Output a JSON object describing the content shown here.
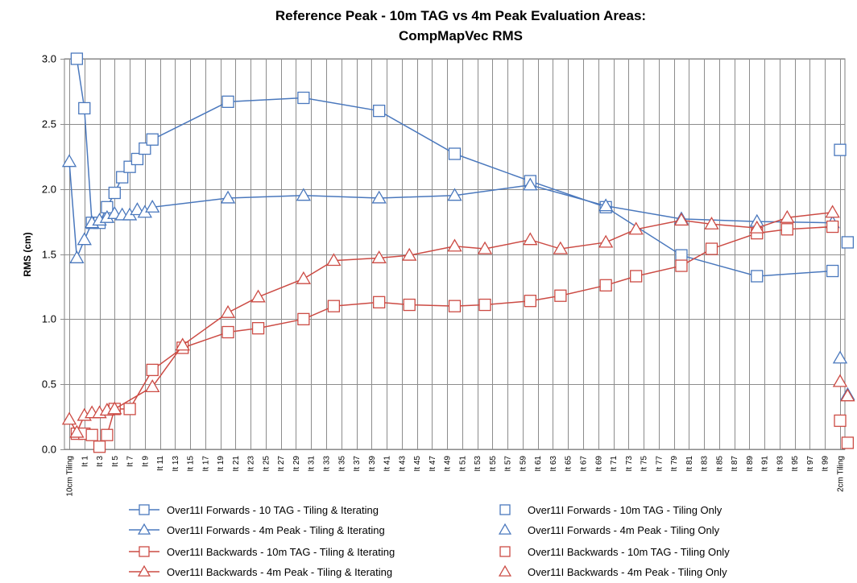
{
  "chart_data": {
    "type": "line",
    "title_line1": "Reference Peak - 10m TAG vs 4m Peak Evaluation Areas:",
    "title_line2": "CompMapVec RMS",
    "title": "Reference Peak - 10m TAG vs 4m Peak Evaluation Areas: CompMapVec RMS",
    "ylabel": "RMS (cm)",
    "xlabel": "",
    "ylim": [
      0,
      3
    ],
    "yticks": [
      "0.0",
      "0.5",
      "1.0",
      "1.5",
      "2.0",
      "2.5",
      "3.0"
    ],
    "grid": true,
    "legend_position": "bottom",
    "categories": [
      "10cm Tiling",
      "It 1",
      "It 3",
      "It 5",
      "It 7",
      "It 9",
      "It 11",
      "It 13",
      "It 15",
      "It 17",
      "It 19",
      "It 21",
      "It 23",
      "It 25",
      "It 27",
      "It 29",
      "It 31",
      "It 33",
      "It 35",
      "It 37",
      "It 39",
      "It 41",
      "It 43",
      "It 45",
      "It 47",
      "It 49",
      "It 51",
      "It 53",
      "It 55",
      "It 57",
      "It 59",
      "It 61",
      "It 63",
      "It 65",
      "It 67",
      "It 69",
      "It 71",
      "It 73",
      "It 75",
      "It 77",
      "It 79",
      "It 81",
      "It 83",
      "It 85",
      "It 87",
      "It 89",
      "It 91",
      "It 93",
      "It 95",
      "It 97",
      "It 99",
      "2cm Tiling"
    ],
    "series": [
      {
        "name": "Over11I Forwards - 10 TAG - Tiling & Iterating",
        "color": "#4a78bd",
        "marker": "square",
        "line": true,
        "x": [
          0.5,
          1,
          1.5,
          2,
          2.5,
          3,
          3.5,
          4,
          4.5,
          5,
          5.5,
          10.5,
          15.5,
          20.5,
          25.5,
          30.5,
          35.5,
          40.5,
          45.5,
          50.5
        ],
        "y": [
          3.0,
          2.62,
          1.74,
          1.74,
          1.86,
          1.97,
          2.09,
          2.17,
          2.23,
          2.31,
          2.38,
          2.67,
          2.7,
          2.6,
          2.27,
          2.06,
          1.86,
          1.49,
          1.33,
          1.37
        ]
      },
      {
        "name": "Over11I Forwards - 10m TAG - Tiling Only",
        "color": "#4a78bd",
        "marker": "square",
        "line": false,
        "x": [
          51,
          51.5
        ],
        "y": [
          2.3,
          1.59
        ]
      },
      {
        "name": "Over11I Forwards - 4m Peak - Tiling & Iterating",
        "color": "#4a78bd",
        "marker": "triangle",
        "line": true,
        "x": [
          0,
          0.5,
          1,
          1.5,
          2,
          2.5,
          3,
          3.5,
          4,
          4.5,
          5,
          5.5,
          10.5,
          15.5,
          20.5,
          25.5,
          30.5,
          35.5,
          40.5,
          45.5,
          50.5
        ],
        "y": [
          2.21,
          1.47,
          1.61,
          1.74,
          1.76,
          1.78,
          1.81,
          1.8,
          1.8,
          1.84,
          1.82,
          1.86,
          1.93,
          1.95,
          1.93,
          1.95,
          2.03,
          1.87,
          1.77,
          1.75,
          1.74
        ]
      },
      {
        "name": "Over11I Forwards - 4m Peak - Tiling Only",
        "color": "#4a78bd",
        "marker": "triangle",
        "line": false,
        "x": [
          51,
          51.5
        ],
        "y": [
          0.7,
          0.42
        ]
      },
      {
        "name": "Over11I Backwards - 10m TAG - Tiling & Iterating",
        "color": "#cc4b44",
        "marker": "square",
        "line": true,
        "x": [
          0.5,
          1,
          1.5,
          2,
          2.5,
          3,
          4,
          5.5,
          7.5,
          10.5,
          12.5,
          15.5,
          17.5,
          20.5,
          22.5,
          25.5,
          27.5,
          30.5,
          32.5,
          35.5,
          37.5,
          40.5,
          42.5,
          45.5,
          47.5,
          50.5
        ],
        "y": [
          0.12,
          0.12,
          0.11,
          0.02,
          0.11,
          0.31,
          0.31,
          0.61,
          0.78,
          0.9,
          0.93,
          1.0,
          1.1,
          1.13,
          1.11,
          1.1,
          1.11,
          1.14,
          1.18,
          1.26,
          1.33,
          1.41,
          1.54,
          1.66,
          1.69,
          1.71
        ]
      },
      {
        "name": "Over11I Backwards - 10m TAG - Tiling Only",
        "color": "#cc4b44",
        "marker": "square",
        "line": false,
        "x": [
          51,
          51.5
        ],
        "y": [
          0.22,
          0.05
        ]
      },
      {
        "name": "Over11I Backwards - 4m Peak - Tiling & Iterating",
        "color": "#cc4b44",
        "marker": "triangle",
        "line": true,
        "x": [
          0,
          0.5,
          1,
          1.5,
          2,
          2.5,
          3,
          5.5,
          7.5,
          10.5,
          12.5,
          15.5,
          17.5,
          20.5,
          22.5,
          25.5,
          27.5,
          30.5,
          32.5,
          35.5,
          37.5,
          40.5,
          42.5,
          45.5,
          47.5,
          50.5
        ],
        "y": [
          0.23,
          0.13,
          0.26,
          0.28,
          0.28,
          0.3,
          0.31,
          0.48,
          0.8,
          1.05,
          1.17,
          1.31,
          1.45,
          1.47,
          1.49,
          1.56,
          1.54,
          1.61,
          1.54,
          1.59,
          1.69,
          1.76,
          1.73,
          1.7,
          1.78,
          1.82
        ]
      },
      {
        "name": "Over11I Backwards - 4m Peak - Tiling Only",
        "color": "#cc4b44",
        "marker": "triangle",
        "line": false,
        "x": [
          51,
          51.5
        ],
        "y": [
          0.52,
          0.41
        ]
      }
    ]
  }
}
